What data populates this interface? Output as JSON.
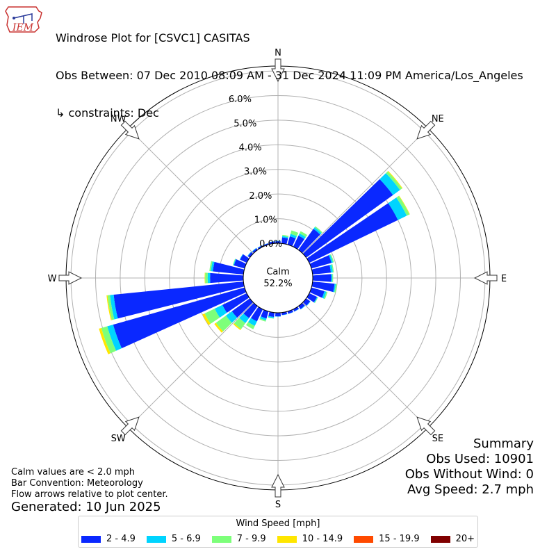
{
  "header": {
    "title": "Windrose Plot for [CSVC1] CASITAS",
    "obs_between": "Obs Between: 07 Dec 2010 08:09 AM - 31 Dec 2024 11:09 PM America/Los_Angeles",
    "constraints": "↳ constraints: Dec",
    "logo_text": "IEM"
  },
  "summary": {
    "heading": "Summary",
    "obs_used": "Obs Used: 10901",
    "obs_without_wind": "Obs Without Wind: 0",
    "avg_speed": "Avg Speed: 2.7 mph"
  },
  "notes": {
    "calm": "Calm values are < 2.0 mph",
    "bar_convention": "Bar Convention: Meteorology",
    "flow_arrows": "Flow arrows relative to plot center.",
    "generated": "Generated: 10 Jun 2025"
  },
  "calm": {
    "label": "Calm",
    "value": "52.2%"
  },
  "chart_data": {
    "type": "windrose",
    "radial_unit": "%",
    "radial_ticks": [
      "0.0%",
      "1.0%",
      "2.0%",
      "3.0%",
      "4.0%",
      "5.0%",
      "6.0%"
    ],
    "radial_range": [
      0,
      7.2
    ],
    "compass_labels": [
      "N",
      "NE",
      "E",
      "SE",
      "S",
      "SW",
      "W",
      "NW"
    ],
    "legend_title": "Wind Speed [mph]",
    "bins": [
      {
        "label": "2 - 4.9",
        "color": "#0a28ff"
      },
      {
        "label": "5 - 6.9",
        "color": "#00d4ff"
      },
      {
        "label": "7 - 9.9",
        "color": "#7dff7a"
      },
      {
        "label": "10 - 14.9",
        "color": "#ffe600"
      },
      {
        "label": "15 - 19.9",
        "color": "#ff4a00"
      },
      {
        "label": "20+",
        "color": "#800000"
      }
    ],
    "directions_deg": [
      0,
      10,
      20,
      30,
      40,
      50,
      60,
      70,
      80,
      90,
      100,
      110,
      120,
      130,
      140,
      150,
      160,
      170,
      180,
      190,
      200,
      210,
      220,
      230,
      240,
      250,
      260,
      270,
      280,
      290,
      300,
      310,
      320,
      330,
      340,
      350
    ],
    "frequencies": [
      [
        0.08,
        0.02,
        0.0,
        0.0,
        0.0,
        0.0
      ],
      [
        0.25,
        0.05,
        0.05,
        0.0,
        0.0,
        0.0
      ],
      [
        0.35,
        0.1,
        0.15,
        0.0,
        0.0,
        0.0
      ],
      [
        0.5,
        0.1,
        0.1,
        0.0,
        0.0,
        0.0
      ],
      [
        1.05,
        0.08,
        0.05,
        0.0,
        0.0,
        0.0
      ],
      [
        4.35,
        0.35,
        0.1,
        0.03,
        0.0,
        0.0
      ],
      [
        4.0,
        0.4,
        0.12,
        0.02,
        0.0,
        0.0
      ],
      [
        0.85,
        0.06,
        0.04,
        0.0,
        0.0,
        0.0
      ],
      [
        0.75,
        0.08,
        0.04,
        0.0,
        0.0,
        0.0
      ],
      [
        0.75,
        0.05,
        0.03,
        0.0,
        0.0,
        0.0
      ],
      [
        0.9,
        0.05,
        0.05,
        0.0,
        0.0,
        0.0
      ],
      [
        0.55,
        0.08,
        0.05,
        0.0,
        0.0,
        0.0
      ],
      [
        0.35,
        0.03,
        0.02,
        0.0,
        0.0,
        0.0
      ],
      [
        0.2,
        0.02,
        0.0,
        0.0,
        0.0,
        0.0
      ],
      [
        0.15,
        0.02,
        0.0,
        0.0,
        0.0,
        0.0
      ],
      [
        0.1,
        0.01,
        0.0,
        0.0,
        0.0,
        0.0
      ],
      [
        0.1,
        0.01,
        0.0,
        0.0,
        0.0,
        0.0
      ],
      [
        0.1,
        0.01,
        0.0,
        0.0,
        0.0,
        0.0
      ],
      [
        0.15,
        0.01,
        0.0,
        0.0,
        0.0,
        0.0
      ],
      [
        0.18,
        0.05,
        0.02,
        0.0,
        0.0,
        0.0
      ],
      [
        0.3,
        0.08,
        0.05,
        0.0,
        0.0,
        0.0
      ],
      [
        0.55,
        0.2,
        0.15,
        0.0,
        0.0,
        0.0
      ],
      [
        0.6,
        0.25,
        0.3,
        0.05,
        0.0,
        0.0
      ],
      [
        0.9,
        0.3,
        0.5,
        0.08,
        0.0,
        0.0
      ],
      [
        1.1,
        0.35,
        0.45,
        0.1,
        0.0,
        0.0
      ],
      [
        5.55,
        0.25,
        0.25,
        0.1,
        0.0,
        0.0
      ],
      [
        5.3,
        0.15,
        0.1,
        0.04,
        0.0,
        0.0
      ],
      [
        1.35,
        0.1,
        0.1,
        0.02,
        0.0,
        0.0
      ],
      [
        1.25,
        0.08,
        0.06,
        0.0,
        0.0,
        0.0
      ],
      [
        0.45,
        0.03,
        0.02,
        0.0,
        0.0,
        0.0
      ],
      [
        0.3,
        0.02,
        0.0,
        0.0,
        0.0,
        0.0
      ],
      [
        0.1,
        0.02,
        0.0,
        0.0,
        0.0,
        0.0
      ],
      [
        0.08,
        0.02,
        0.0,
        0.0,
        0.0,
        0.0
      ],
      [
        0.06,
        0.01,
        0.0,
        0.0,
        0.0,
        0.0
      ],
      [
        0.05,
        0.01,
        0.0,
        0.0,
        0.0,
        0.0
      ],
      [
        0.08,
        0.01,
        0.0,
        0.0,
        0.0,
        0.0
      ]
    ]
  }
}
